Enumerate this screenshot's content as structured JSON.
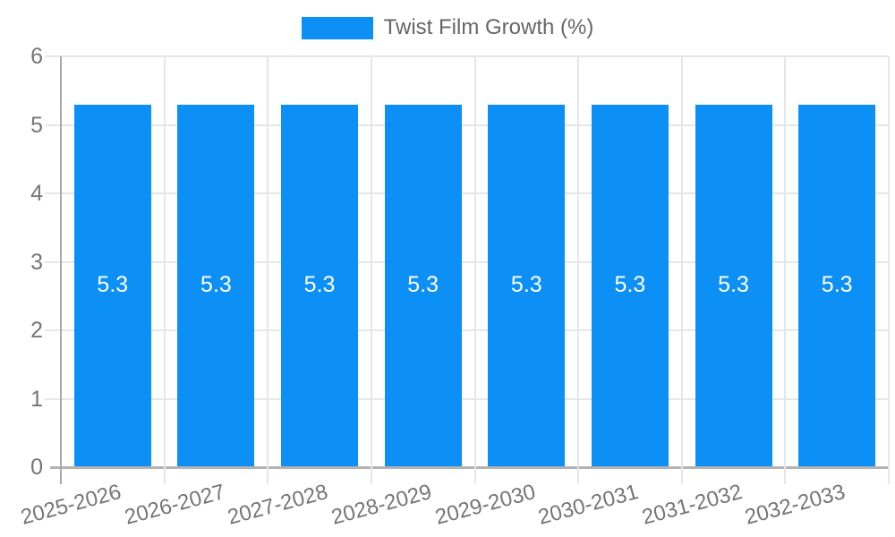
{
  "chart_data": {
    "type": "bar",
    "title": "Twist Film Growth (%)",
    "categories": [
      "2025-2026",
      "2026-2027",
      "2027-2028",
      "2028-2029",
      "2029-2030",
      "2030-2031",
      "2031-2032",
      "2032-2033"
    ],
    "values": [
      5.3,
      5.3,
      5.3,
      5.3,
      5.3,
      5.3,
      5.3,
      5.3
    ],
    "bar_labels": [
      "5.3",
      "5.3",
      "5.3",
      "5.3",
      "5.3",
      "5.3",
      "5.3",
      "5.3"
    ],
    "xlabel": "",
    "ylabel": "",
    "ylim": [
      0,
      6
    ],
    "yticks": [
      "0",
      "1",
      "2",
      "3",
      "4",
      "5",
      "6"
    ],
    "grid": true,
    "legend_position": "top-center",
    "colors": {
      "bar": "#0d90f5",
      "bar_label": "#ffffff",
      "axis_text": "#757575",
      "legend_text": "#666666",
      "gridline": "#e6e6e6",
      "axis_line": "#ababab",
      "background": "#ffffff"
    }
  }
}
